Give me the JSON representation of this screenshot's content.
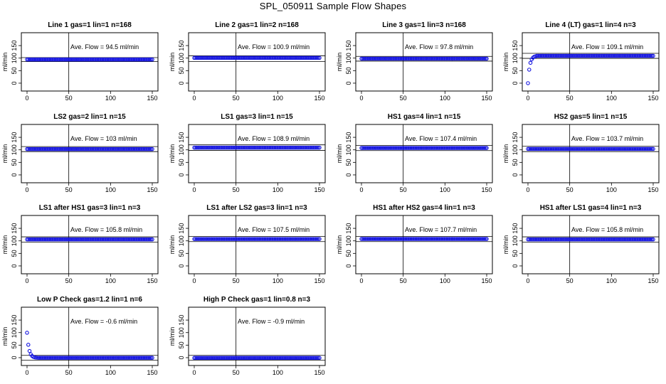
{
  "page_title": "SPL_050911  Sample Flow Shapes",
  "chart_data": [
    {
      "type": "scatter",
      "title": "Line 1 gas=1 lin=1 n=168",
      "ylabel": "ml/min",
      "annotation": "Ave. Flow = 94.5  ml/min",
      "xlim": [
        0,
        150
      ],
      "ylim": [
        -20,
        190
      ],
      "x_ticks": [
        0,
        50,
        100,
        150
      ],
      "y_ticks": [
        0,
        50,
        100,
        150
      ],
      "ref_lines_y": [
        86,
        102
      ],
      "ref_line_x": 50,
      "series": [
        {
          "shape": "flat",
          "plateau": 94.5
        }
      ]
    },
    {
      "type": "scatter",
      "title": "Line 2 gas=1 lin=2 n=168",
      "ylabel": "ml/min",
      "annotation": "Ave. Flow = 100.9  ml/min",
      "xlim": [
        0,
        150
      ],
      "ylim": [
        -20,
        190
      ],
      "x_ticks": [
        0,
        50,
        100,
        150
      ],
      "y_ticks": [
        0,
        50,
        100,
        150
      ],
      "ref_lines_y": [
        86,
        109
      ],
      "ref_line_x": 50,
      "series": [
        {
          "shape": "flat",
          "plateau": 100.9
        }
      ]
    },
    {
      "type": "scatter",
      "title": "Line 3 gas=1 lin=3 n=168",
      "ylabel": "ml/min",
      "annotation": "Ave. Flow = 97.8  ml/min",
      "xlim": [
        0,
        150
      ],
      "ylim": [
        -20,
        190
      ],
      "x_ticks": [
        0,
        50,
        100,
        150
      ],
      "y_ticks": [
        0,
        50,
        100,
        150
      ],
      "ref_lines_y": [
        88,
        107
      ],
      "ref_line_x": 50,
      "series": [
        {
          "shape": "flat",
          "plateau": 97.8
        }
      ]
    },
    {
      "type": "scatter",
      "title": "Line 4 (LT) gas=1 lin=4 n=3",
      "ylabel": "ml/min",
      "annotation": "Ave. Flow = 109.1  ml/min",
      "xlim": [
        0,
        150
      ],
      "ylim": [
        -20,
        190
      ],
      "x_ticks": [
        0,
        50,
        100,
        150
      ],
      "y_ticks": [
        0,
        50,
        100,
        150
      ],
      "ref_lines_y": [
        99,
        119
      ],
      "ref_line_x": 50,
      "series": [
        {
          "shape": "rise",
          "plateau": 109.1
        }
      ]
    },
    {
      "type": "scatter",
      "title": "LS2 gas=2 lin=1 n=15",
      "ylabel": "ml/min",
      "annotation": "Ave. Flow = 103  ml/min",
      "xlim": [
        0,
        150
      ],
      "ylim": [
        -20,
        190
      ],
      "x_ticks": [
        0,
        50,
        100,
        150
      ],
      "y_ticks": [
        0,
        50,
        100,
        150
      ],
      "ref_lines_y": [
        93,
        113
      ],
      "ref_line_x": 50,
      "series": [
        {
          "shape": "flat",
          "plateau": 103
        }
      ]
    },
    {
      "type": "scatter",
      "title": "LS1 gas=3 lin=1 n=15",
      "ylabel": "ml/min",
      "annotation": "Ave. Flow = 108.9  ml/min",
      "xlim": [
        0,
        150
      ],
      "ylim": [
        -20,
        190
      ],
      "x_ticks": [
        0,
        50,
        100,
        150
      ],
      "y_ticks": [
        0,
        50,
        100,
        150
      ],
      "ref_lines_y": [
        98,
        120
      ],
      "ref_line_x": 50,
      "series": [
        {
          "shape": "flat",
          "plateau": 108.9
        }
      ]
    },
    {
      "type": "scatter",
      "title": "HS1 gas=4 lin=1 n=15",
      "ylabel": "ml/min",
      "annotation": "Ave. Flow = 107.4  ml/min",
      "xlim": [
        0,
        150
      ],
      "ylim": [
        -20,
        190
      ],
      "x_ticks": [
        0,
        50,
        100,
        150
      ],
      "y_ticks": [
        0,
        50,
        100,
        150
      ],
      "ref_lines_y": [
        97,
        118
      ],
      "ref_line_x": 50,
      "series": [
        {
          "shape": "flat",
          "plateau": 107.4
        }
      ]
    },
    {
      "type": "scatter",
      "title": "HS2 gas=5 lin=1 n=15",
      "ylabel": "ml/min",
      "annotation": "Ave. Flow = 103.7  ml/min",
      "xlim": [
        0,
        150
      ],
      "ylim": [
        -20,
        190
      ],
      "x_ticks": [
        0,
        50,
        100,
        150
      ],
      "y_ticks": [
        0,
        50,
        100,
        150
      ],
      "ref_lines_y": [
        93,
        114
      ],
      "ref_line_x": 50,
      "series": [
        {
          "shape": "flat",
          "plateau": 103.7
        }
      ]
    },
    {
      "type": "scatter",
      "title": "LS1 after HS1 gas=3 lin=1 n=3",
      "ylabel": "ml/min",
      "annotation": "Ave. Flow = 105.8  ml/min",
      "xlim": [
        0,
        150
      ],
      "ylim": [
        -20,
        190
      ],
      "x_ticks": [
        0,
        50,
        100,
        150
      ],
      "y_ticks": [
        0,
        50,
        100,
        150
      ],
      "ref_lines_y": [
        95,
        116
      ],
      "ref_line_x": 50,
      "series": [
        {
          "shape": "flat",
          "plateau": 105.8
        }
      ]
    },
    {
      "type": "scatter",
      "title": "LS1 after LS2 gas=3 lin=1 n=3",
      "ylabel": "ml/min",
      "annotation": "Ave. Flow = 107.5  ml/min",
      "xlim": [
        0,
        150
      ],
      "ylim": [
        -20,
        190
      ],
      "x_ticks": [
        0,
        50,
        100,
        150
      ],
      "y_ticks": [
        0,
        50,
        100,
        150
      ],
      "ref_lines_y": [
        97,
        118
      ],
      "ref_line_x": 50,
      "series": [
        {
          "shape": "flat",
          "plateau": 107.5
        }
      ]
    },
    {
      "type": "scatter",
      "title": "HS1 after HS2 gas=4 lin=1 n=3",
      "ylabel": "ml/min",
      "annotation": "Ave. Flow = 107.7  ml/min",
      "xlim": [
        0,
        150
      ],
      "ylim": [
        -20,
        190
      ],
      "x_ticks": [
        0,
        50,
        100,
        150
      ],
      "y_ticks": [
        0,
        50,
        100,
        150
      ],
      "ref_lines_y": [
        97,
        118
      ],
      "ref_line_x": 50,
      "series": [
        {
          "shape": "flat",
          "plateau": 107.7
        }
      ]
    },
    {
      "type": "scatter",
      "title": "HS1 after LS1 gas=4 lin=1 n=3",
      "ylabel": "ml/min",
      "annotation": "Ave. Flow = 105.8  ml/min",
      "xlim": [
        0,
        150
      ],
      "ylim": [
        -20,
        190
      ],
      "x_ticks": [
        0,
        50,
        100,
        150
      ],
      "y_ticks": [
        0,
        50,
        100,
        150
      ],
      "ref_lines_y": [
        95,
        116
      ],
      "ref_line_x": 50,
      "series": [
        {
          "shape": "flat",
          "plateau": 105.8
        }
      ]
    },
    {
      "type": "scatter",
      "title": "Low P Check gas=1.2 lin=1 n=6",
      "ylabel": "ml/min",
      "annotation": "Ave. Flow = -0.6  ml/min",
      "xlim": [
        0,
        150
      ],
      "ylim": [
        -20,
        190
      ],
      "x_ticks": [
        0,
        50,
        100,
        150
      ],
      "y_ticks": [
        0,
        50,
        100,
        150
      ],
      "ref_lines_y": [
        -10,
        9
      ],
      "ref_line_x": 50,
      "series": [
        {
          "shape": "decay",
          "plateau": -0.6
        }
      ]
    },
    {
      "type": "scatter",
      "title": "High P Check gas=1 lin=0.8 n=3",
      "ylabel": "ml/min",
      "annotation": "Ave. Flow = -0.9  ml/min",
      "xlim": [
        0,
        150
      ],
      "ylim": [
        -20,
        190
      ],
      "x_ticks": [
        0,
        50,
        100,
        150
      ],
      "y_ticks": [
        0,
        50,
        100,
        150
      ],
      "ref_lines_y": [
        -10,
        9
      ],
      "ref_line_x": 50,
      "series": [
        {
          "shape": "flat",
          "plateau": -0.9
        }
      ]
    }
  ]
}
